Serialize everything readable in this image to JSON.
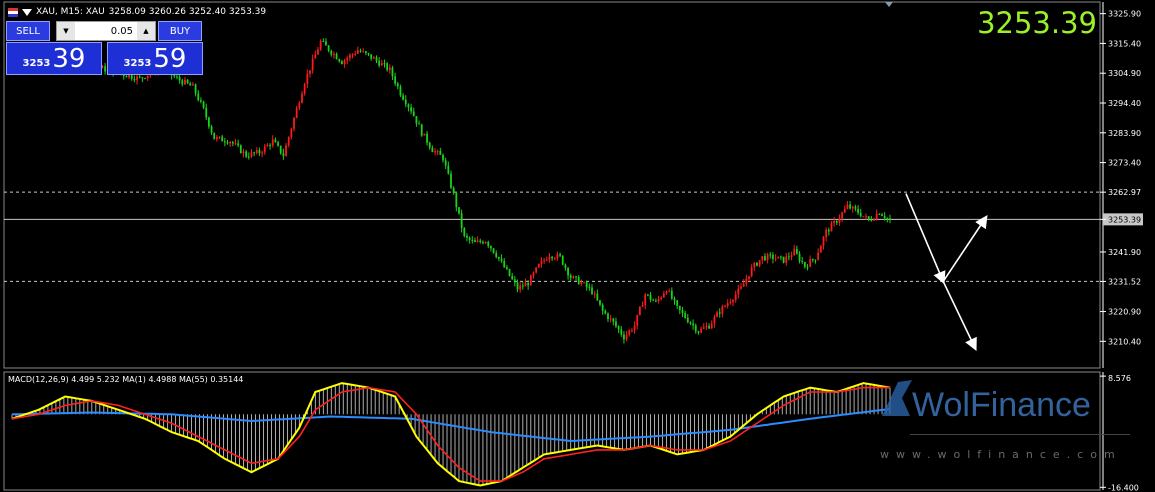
{
  "header": {
    "symbol_line": "XAU, M15: XAU",
    "ohlc": "3258.09 3260.26 3252.40 3253.39"
  },
  "current_price": "3253.39",
  "trade_panel": {
    "sell_label": "SELL",
    "buy_label": "BUY",
    "lot": "0.05",
    "lot_down": "▼",
    "lot_up": "▲",
    "bid_small": "3253",
    "bid_big": "39",
    "ask_small": "3253",
    "ask_big": "59"
  },
  "watermark": {
    "brand": "WolFinance",
    "url": "www.wolfinance.com"
  },
  "colors": {
    "up": "#ff1a1a",
    "down": "#19d419",
    "grid_line": "#c8c8c8",
    "macd_line": "#ffff00",
    "signal_line": "#ff2020",
    "ma55_line": "#2a8cff",
    "big_price": "#9cf02a"
  },
  "chart_data": [
    {
      "type": "candlestick",
      "symbol": "XAU",
      "timeframe": "M15",
      "y_axis_ticks": [
        "3325.90",
        "3315.40",
        "3304.90",
        "3294.40",
        "3283.90",
        "3273.40",
        "3262.97",
        "3253.39",
        "3241.90",
        "3231.52",
        "3220.90",
        "3210.40"
      ],
      "ylim": [
        3201,
        3330
      ],
      "horizontal_levels": [
        {
          "value": 3262.97,
          "style": "dashed"
        },
        {
          "value": 3253.39,
          "style": "solid"
        },
        {
          "value": 3231.52,
          "style": "dashed"
        }
      ],
      "close_path": [
        [
          0,
          3309
        ],
        [
          8,
          3311
        ],
        [
          16,
          3312
        ],
        [
          24,
          3310
        ],
        [
          32,
          3307
        ],
        [
          40,
          3305
        ],
        [
          48,
          3303
        ],
        [
          56,
          3307
        ],
        [
          62,
          3303
        ],
        [
          68,
          3300
        ],
        [
          72,
          3292
        ],
        [
          76,
          3282
        ],
        [
          82,
          3281
        ],
        [
          88,
          3276
        ],
        [
          93,
          3277
        ],
        [
          98,
          3281
        ],
        [
          102,
          3276
        ],
        [
          106,
          3289
        ],
        [
          110,
          3302
        ],
        [
          116,
          3316
        ],
        [
          124,
          3309
        ],
        [
          130,
          3313
        ],
        [
          136,
          3310
        ],
        [
          142,
          3306
        ],
        [
          146,
          3298
        ],
        [
          150,
          3292
        ],
        [
          154,
          3284
        ],
        [
          158,
          3278
        ],
        [
          162,
          3275
        ],
        [
          166,
          3262
        ],
        [
          170,
          3247
        ],
        [
          174,
          3245
        ],
        [
          178,
          3246
        ],
        [
          182,
          3241
        ],
        [
          186,
          3235
        ],
        [
          190,
          3229
        ],
        [
          194,
          3231
        ],
        [
          198,
          3237
        ],
        [
          202,
          3241
        ],
        [
          206,
          3240
        ],
        [
          210,
          3233
        ],
        [
          214,
          3231
        ],
        [
          218,
          3228
        ],
        [
          222,
          3221
        ],
        [
          226,
          3217
        ],
        [
          230,
          3212
        ],
        [
          234,
          3216
        ],
        [
          238,
          3227
        ],
        [
          242,
          3224
        ],
        [
          246,
          3229
        ],
        [
          250,
          3222
        ],
        [
          254,
          3218
        ],
        [
          258,
          3214
        ],
        [
          262,
          3216
        ],
        [
          266,
          3221
        ],
        [
          270,
          3225
        ],
        [
          274,
          3229
        ],
        [
          278,
          3236
        ],
        [
          282,
          3240
        ],
        [
          286,
          3240
        ],
        [
          290,
          3239
        ],
        [
          294,
          3242
        ],
        [
          298,
          3237
        ],
        [
          302,
          3240
        ],
        [
          306,
          3249
        ],
        [
          310,
          3253
        ],
        [
          314,
          3258
        ],
        [
          318,
          3256
        ],
        [
          322,
          3253
        ],
        [
          326,
          3256
        ],
        [
          330,
          3253
        ]
      ],
      "annotations": [
        {
          "type": "arrow",
          "from": [
            336,
            3262.5
          ],
          "to": [
            350,
            3231.5
          ]
        },
        {
          "type": "arrow",
          "from": [
            350,
            3231.5
          ],
          "to": [
            366,
            3254
          ]
        },
        {
          "type": "arrow",
          "from": [
            350,
            3231.5
          ],
          "to": [
            362,
            3208
          ]
        }
      ]
    },
    {
      "type": "line",
      "indicator_label": "MACD(12,26,9) 4.499 5.232 MA(1) 4.4988 MA(55) 0.35144",
      "y_axis_ticks": [
        "8.576",
        "-16.400"
      ],
      "ylim": [
        -17,
        9.5
      ],
      "series": [
        {
          "name": "MACD",
          "values": [
            [
              0,
              -1
            ],
            [
              10,
              1
            ],
            [
              20,
              4
            ],
            [
              30,
              3
            ],
            [
              40,
              1
            ],
            [
              50,
              -1
            ],
            [
              60,
              -4
            ],
            [
              70,
              -6
            ],
            [
              80,
              -10
            ],
            [
              90,
              -13
            ],
            [
              100,
              -10
            ],
            [
              108,
              -3
            ],
            [
              114,
              5
            ],
            [
              124,
              7
            ],
            [
              134,
              6
            ],
            [
              144,
              4
            ],
            [
              152,
              -5
            ],
            [
              160,
              -11
            ],
            [
              168,
              -15
            ],
            [
              176,
              -16
            ],
            [
              184,
              -15
            ],
            [
              192,
              -12
            ],
            [
              200,
              -9
            ],
            [
              210,
              -8
            ],
            [
              220,
              -7
            ],
            [
              230,
              -8
            ],
            [
              240,
              -7
            ],
            [
              250,
              -9
            ],
            [
              260,
              -8
            ],
            [
              270,
              -5
            ],
            [
              280,
              0
            ],
            [
              290,
              4
            ],
            [
              300,
              6
            ],
            [
              310,
              5
            ],
            [
              320,
              7
            ],
            [
              330,
              6
            ]
          ]
        },
        {
          "name": "Signal",
          "values": [
            [
              0,
              -1
            ],
            [
              10,
              0
            ],
            [
              20,
              2
            ],
            [
              30,
              3
            ],
            [
              40,
              2
            ],
            [
              50,
              0
            ],
            [
              60,
              -2
            ],
            [
              70,
              -5
            ],
            [
              80,
              -8
            ],
            [
              90,
              -11
            ],
            [
              100,
              -10
            ],
            [
              108,
              -5
            ],
            [
              114,
              1
            ],
            [
              124,
              5
            ],
            [
              134,
              6
            ],
            [
              144,
              5
            ],
            [
              152,
              0
            ],
            [
              160,
              -7
            ],
            [
              168,
              -12
            ],
            [
              176,
              -15
            ],
            [
              184,
              -15
            ],
            [
              192,
              -13
            ],
            [
              200,
              -10
            ],
            [
              210,
              -9
            ],
            [
              220,
              -8
            ],
            [
              230,
              -8
            ],
            [
              240,
              -7
            ],
            [
              250,
              -8
            ],
            [
              260,
              -8
            ],
            [
              270,
              -6
            ],
            [
              280,
              -2
            ],
            [
              290,
              2
            ],
            [
              300,
              5
            ],
            [
              310,
              5
            ],
            [
              320,
              6
            ],
            [
              330,
              6
            ]
          ]
        },
        {
          "name": "MA(55)",
          "values": [
            [
              0,
              0
            ],
            [
              30,
              0.4
            ],
            [
              60,
              0
            ],
            [
              90,
              -1.5
            ],
            [
              120,
              -0.5
            ],
            [
              150,
              -1
            ],
            [
              180,
              -4
            ],
            [
              210,
              -6
            ],
            [
              240,
              -5
            ],
            [
              270,
              -3.5
            ],
            [
              300,
              -1
            ],
            [
              330,
              1.2
            ]
          ]
        }
      ]
    }
  ]
}
